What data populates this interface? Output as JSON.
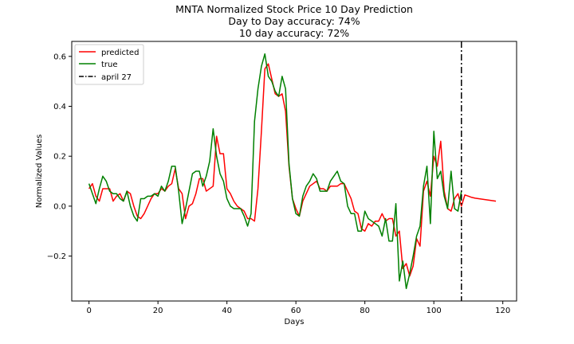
{
  "chart_data": {
    "type": "line",
    "title": "MNTA Normalized Stock Price 10 Day Prediction",
    "subtitle_lines": [
      "Day to Day accuracy: 74%",
      "10 day accuracy: 72%"
    ],
    "xlabel": "Days",
    "ylabel": "Normalized Values",
    "xlim": [
      -5,
      124
    ],
    "ylim": [
      -0.38,
      0.66
    ],
    "xticks": [
      0,
      20,
      40,
      60,
      80,
      100,
      120
    ],
    "yticks": [
      -0.2,
      0.0,
      0.2,
      0.4,
      0.6
    ],
    "xtick_labels": [
      "0",
      "20",
      "40",
      "60",
      "80",
      "100",
      "120"
    ],
    "ytick_labels": [
      "−0.2",
      "0.0",
      "0.2",
      "0.4",
      "0.6"
    ],
    "legend_position": "top-left",
    "vline": {
      "x": 108,
      "label": "april 27",
      "color": "#000000",
      "style": "dashdot"
    },
    "series": [
      {
        "name": "predicted",
        "color": "#ff0000",
        "x": [
          0,
          1,
          2,
          3,
          4,
          5,
          6,
          7,
          8,
          9,
          10,
          11,
          12,
          13,
          14,
          15,
          16,
          17,
          18,
          19,
          20,
          21,
          22,
          23,
          24,
          25,
          26,
          27,
          28,
          29,
          30,
          31,
          32,
          33,
          34,
          35,
          36,
          37,
          38,
          39,
          40,
          41,
          42,
          43,
          44,
          45,
          46,
          47,
          48,
          49,
          50,
          51,
          52,
          53,
          54,
          55,
          56,
          57,
          58,
          59,
          60,
          61,
          62,
          63,
          64,
          65,
          66,
          67,
          68,
          69,
          70,
          71,
          72,
          73,
          74,
          75,
          76,
          77,
          78,
          79,
          80,
          81,
          82,
          83,
          84,
          85,
          86,
          87,
          88,
          89,
          90,
          91,
          92,
          93,
          94,
          95,
          96,
          97,
          98,
          99,
          100,
          101,
          102,
          103,
          104,
          105,
          106,
          107,
          108,
          109,
          110,
          111,
          112,
          113,
          114,
          115,
          116,
          117,
          118
        ],
        "values": [
          0.07,
          0.09,
          0.04,
          0.02,
          0.07,
          0.07,
          0.07,
          0.02,
          0.04,
          0.05,
          0.02,
          0.06,
          0.05,
          0.0,
          -0.04,
          -0.05,
          -0.03,
          0.0,
          0.03,
          0.05,
          0.05,
          0.07,
          0.06,
          0.08,
          0.09,
          0.15,
          0.07,
          0.05,
          -0.05,
          0.0,
          0.01,
          0.05,
          0.11,
          0.11,
          0.06,
          0.07,
          0.08,
          0.28,
          0.21,
          0.21,
          0.07,
          0.05,
          0.02,
          0.0,
          -0.01,
          -0.02,
          -0.05,
          -0.05,
          -0.06,
          0.07,
          0.3,
          0.55,
          0.57,
          0.51,
          0.45,
          0.44,
          0.45,
          0.38,
          0.16,
          0.03,
          -0.01,
          -0.04,
          0.02,
          0.05,
          0.08,
          0.09,
          0.1,
          0.07,
          0.07,
          0.06,
          0.08,
          0.08,
          0.08,
          0.09,
          0.09,
          0.06,
          0.03,
          -0.02,
          -0.03,
          -0.09,
          -0.1,
          -0.07,
          -0.08,
          -0.06,
          -0.06,
          -0.03,
          -0.06,
          -0.05,
          -0.05,
          -0.12,
          -0.1,
          -0.25,
          -0.23,
          -0.28,
          -0.24,
          -0.13,
          -0.16,
          0.06,
          0.1,
          0.04,
          0.2,
          0.16,
          0.26,
          0.06,
          -0.01,
          -0.02,
          0.03,
          0.05,
          0.0,
          0.045,
          0.04,
          0.035,
          0.032,
          0.03,
          0.028,
          0.026,
          0.024,
          0.022,
          0.02
        ]
      },
      {
        "name": "true",
        "color": "#008000",
        "x": [
          0,
          1,
          2,
          3,
          4,
          5,
          6,
          7,
          8,
          9,
          10,
          11,
          12,
          13,
          14,
          15,
          16,
          17,
          18,
          19,
          20,
          21,
          22,
          23,
          24,
          25,
          26,
          27,
          28,
          29,
          30,
          31,
          32,
          33,
          34,
          35,
          36,
          37,
          38,
          39,
          40,
          41,
          42,
          43,
          44,
          45,
          46,
          47,
          48,
          49,
          50,
          51,
          52,
          53,
          54,
          55,
          56,
          57,
          58,
          59,
          60,
          61,
          62,
          63,
          64,
          65,
          66,
          67,
          68,
          69,
          70,
          71,
          72,
          73,
          74,
          75,
          76,
          77,
          78,
          79,
          80,
          81,
          82,
          83,
          84,
          85,
          86,
          87,
          88,
          89,
          90,
          91,
          92,
          93,
          94,
          95,
          96,
          97,
          98,
          99,
          100,
          101,
          102,
          103,
          104,
          105,
          106,
          107,
          108
        ],
        "values": [
          0.09,
          0.05,
          0.01,
          0.07,
          0.12,
          0.1,
          0.06,
          0.05,
          0.05,
          0.03,
          0.02,
          0.06,
          0.0,
          -0.04,
          -0.06,
          0.03,
          0.03,
          0.04,
          0.04,
          0.05,
          0.04,
          0.08,
          0.06,
          0.1,
          0.16,
          0.16,
          0.06,
          -0.07,
          -0.01,
          0.06,
          0.13,
          0.14,
          0.14,
          0.08,
          0.12,
          0.18,
          0.31,
          0.2,
          0.13,
          0.1,
          0.03,
          0.0,
          -0.01,
          -0.01,
          -0.01,
          -0.04,
          -0.08,
          -0.03,
          0.34,
          0.47,
          0.56,
          0.61,
          0.52,
          0.5,
          0.46,
          0.44,
          0.52,
          0.47,
          0.17,
          0.03,
          -0.03,
          -0.04,
          0.04,
          0.08,
          0.1,
          0.13,
          0.11,
          0.06,
          0.06,
          0.06,
          0.1,
          0.12,
          0.14,
          0.1,
          0.09,
          0.0,
          -0.03,
          -0.03,
          -0.1,
          -0.1,
          -0.02,
          -0.05,
          -0.06,
          -0.07,
          -0.08,
          -0.12,
          -0.05,
          -0.14,
          -0.14,
          0.01,
          -0.3,
          -0.22,
          -0.33,
          -0.27,
          -0.2,
          -0.12,
          -0.08,
          0.08,
          0.16,
          -0.07,
          0.3,
          0.11,
          0.14,
          0.04,
          -0.01,
          0.14,
          -0.01,
          -0.02,
          0.06
        ]
      }
    ]
  }
}
